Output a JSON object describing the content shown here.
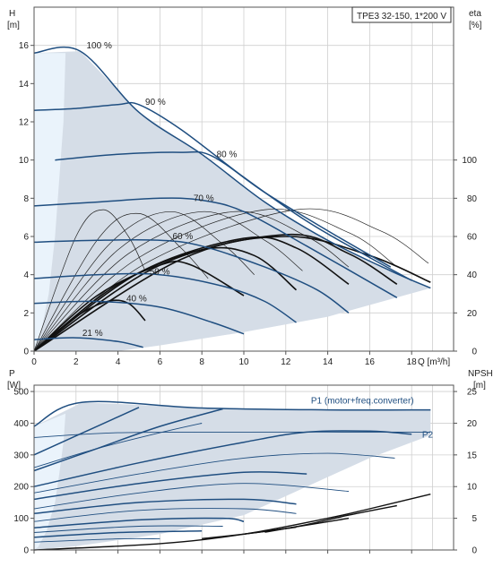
{
  "title": "TPE3 32-150, 1*200 V",
  "colors": {
    "envelope": "#d5dde7",
    "leftBand": "#eaf3fb",
    "curve": "#1f4e80",
    "thin": "#222222",
    "grid": "#cfcfcf"
  },
  "chart_data": [
    {
      "id": "head",
      "type": "line",
      "xlabel": "Q [m³/h]",
      "ylabel_left": "H",
      "ylabel_left_unit": "[m]",
      "ylabel_right": "eta",
      "ylabel_right_unit": "[%]",
      "xlim": [
        0,
        20
      ],
      "ylim": [
        0,
        18
      ],
      "xticks": [
        0,
        2,
        4,
        6,
        8,
        10,
        12,
        14,
        16,
        18
      ],
      "xticklabels": [
        "0",
        "2",
        "4",
        "6",
        "8",
        "10",
        "12",
        "14",
        "16",
        "18"
      ],
      "yticks": [
        0,
        2,
        4,
        6,
        8,
        10,
        12,
        14,
        16
      ],
      "yticklabels": [
        "0",
        "2",
        "4",
        "6",
        "8",
        "10",
        "12",
        "14",
        "16"
      ],
      "right_ticks": [
        0,
        20,
        40,
        60,
        80,
        100
      ],
      "right_ticklabels": [
        "0",
        "20",
        "40",
        "60",
        "80",
        "100"
      ],
      "right_scale": 0.1,
      "envelope": [
        [
          0,
          15.6
        ],
        [
          2.2,
          15.7
        ],
        [
          5,
          12.5
        ],
        [
          8,
          10.3
        ],
        [
          11,
          7.8
        ],
        [
          14,
          5.8
        ],
        [
          17,
          4.2
        ],
        [
          18.9,
          3.3
        ],
        [
          14,
          1.8
        ],
        [
          10,
          1
        ],
        [
          6,
          0.3
        ],
        [
          4,
          0
        ],
        [
          0,
          0
        ]
      ],
      "left_band": [
        [
          0,
          15.6
        ],
        [
          1.5,
          15.6
        ],
        [
          1.4,
          12
        ],
        [
          1.2,
          9
        ],
        [
          1,
          6
        ],
        [
          0.7,
          3
        ],
        [
          0.3,
          0.8
        ],
        [
          0,
          0
        ]
      ],
      "series": [
        {
          "label": "100 %",
          "label_at": [
            2.5,
            15.85
          ],
          "values": [
            [
              0,
              15.6
            ],
            [
              2.2,
              15.7
            ],
            [
              5,
              12.5
            ],
            [
              8,
              10.3
            ],
            [
              11,
              7.8
            ],
            [
              14,
              5.8
            ],
            [
              17,
              4.2
            ],
            [
              18.9,
              3.3
            ]
          ]
        },
        {
          "label": "90 %",
          "label_at": [
            5.3,
            12.9
          ],
          "values": [
            [
              0,
              12.6
            ],
            [
              2,
              12.7
            ],
            [
              4,
              12.9
            ],
            [
              5,
              12.9
            ],
            [
              7,
              11.6
            ],
            [
              10,
              9.1
            ],
            [
              13,
              6.8
            ],
            [
              16,
              4.9
            ],
            [
              18,
              3.7
            ]
          ]
        },
        {
          "label": "80 %",
          "label_at": [
            8.7,
            10.15
          ],
          "values": [
            [
              1,
              10
            ],
            [
              4,
              10.3
            ],
            [
              7,
              10.4
            ],
            [
              8.5,
              10.2
            ],
            [
              11,
              8.3
            ],
            [
              14,
              6.3
            ],
            [
              17,
              4.4
            ]
          ]
        },
        {
          "label": "70 %",
          "label_at": [
            7.6,
            7.85
          ],
          "values": [
            [
              0,
              7.6
            ],
            [
              3,
              7.8
            ],
            [
              6,
              8
            ],
            [
              8,
              7.9
            ],
            [
              10,
              7.3
            ],
            [
              13,
              5.5
            ],
            [
              17.3,
              2.8
            ]
          ]
        },
        {
          "label": "60 %",
          "label_at": [
            6.6,
            5.85
          ],
          "values": [
            [
              0,
              5.7
            ],
            [
              3,
              5.8
            ],
            [
              6,
              5.8
            ],
            [
              8,
              5.5
            ],
            [
              11,
              4.4
            ],
            [
              13.5,
              3.2
            ],
            [
              15,
              2
            ]
          ]
        },
        {
          "label": "50 %",
          "label_at": [
            5.5,
            4
          ],
          "values": [
            [
              0,
              3.8
            ],
            [
              3,
              4
            ],
            [
              6,
              4
            ],
            [
              9,
              3.4
            ],
            [
              11,
              2.6
            ],
            [
              12.5,
              1.5
            ]
          ]
        },
        {
          "label": "40 %",
          "label_at": [
            4.4,
            2.6
          ],
          "values": [
            [
              0,
              2.5
            ],
            [
              3,
              2.6
            ],
            [
              6,
              2.3
            ],
            [
              8.5,
              1.5
            ],
            [
              10,
              0.9
            ]
          ]
        },
        {
          "label": "21 %",
          "label_at": [
            2.3,
            0.8
          ],
          "values": [
            [
              0,
              0.6
            ],
            [
              2,
              0.7
            ],
            [
              4,
              0.5
            ],
            [
              5.2,
              0.2
            ]
          ]
        }
      ],
      "eta_bold": [
        [
          [
            0,
            0
          ],
          [
            2,
            1.8
          ],
          [
            3.5,
            2.6
          ],
          [
            4.5,
            2.5
          ],
          [
            5.3,
            1.6
          ]
        ],
        [
          [
            0,
            0
          ],
          [
            3,
            2.9
          ],
          [
            6,
            4.5
          ],
          [
            7.5,
            4.5
          ],
          [
            10,
            2.9
          ]
        ],
        [
          [
            0,
            0
          ],
          [
            4,
            3.5
          ],
          [
            8,
            5.3
          ],
          [
            10.5,
            5
          ],
          [
            12.5,
            3.2
          ]
        ],
        [
          [
            0,
            0
          ],
          [
            5,
            4.1
          ],
          [
            10,
            5.9
          ],
          [
            12.5,
            5.4
          ],
          [
            15,
            3.5
          ]
        ],
        [
          [
            0,
            0
          ],
          [
            6,
            4.5
          ],
          [
            12,
            6.1
          ],
          [
            15,
            5.1
          ],
          [
            17.3,
            3.5
          ]
        ],
        [
          [
            0,
            0
          ],
          [
            7,
            4.8
          ],
          [
            12,
            6
          ],
          [
            16,
            5
          ],
          [
            18.9,
            3.6
          ]
        ]
      ],
      "eta_thin": [
        [
          [
            0,
            0
          ],
          [
            2,
            6
          ],
          [
            3.3,
            7.4
          ],
          [
            4.5,
            6
          ],
          [
            5.3,
            4.2
          ]
        ],
        [
          [
            0,
            0
          ],
          [
            3,
            5.8
          ],
          [
            5,
            7.2
          ],
          [
            7,
            5.4
          ],
          [
            8.3,
            3.8
          ]
        ],
        [
          [
            0,
            0
          ],
          [
            3.5,
            5.5
          ],
          [
            6.5,
            7.3
          ],
          [
            9,
            5.6
          ],
          [
            10.5,
            4
          ]
        ],
        [
          [
            0,
            0
          ],
          [
            4,
            5.3
          ],
          [
            8,
            7.3
          ],
          [
            11,
            5.8
          ],
          [
            12.8,
            4.2
          ]
        ],
        [
          [
            0,
            0
          ],
          [
            4.5,
            5.1
          ],
          [
            9.5,
            7.3
          ],
          [
            13,
            6
          ],
          [
            15,
            4.4
          ]
        ],
        [
          [
            0,
            0
          ],
          [
            5,
            4.9
          ],
          [
            11,
            7.4
          ],
          [
            15,
            6.2
          ],
          [
            17.2,
            4.5
          ]
        ],
        [
          [
            0,
            0
          ],
          [
            5.5,
            4.7
          ],
          [
            12.5,
            7.4
          ],
          [
            16.5,
            6.3
          ],
          [
            18.8,
            4.6
          ]
        ]
      ]
    },
    {
      "id": "power",
      "type": "line",
      "ylabel_left": "P",
      "ylabel_left_unit": "[W]",
      "ylabel_right": "NPSH",
      "ylabel_right_unit": "[m]",
      "xlim": [
        0,
        20
      ],
      "ylim": [
        0,
        520
      ],
      "xticks": [
        0,
        2,
        4,
        6,
        8,
        10,
        12,
        14,
        16,
        18
      ],
      "yticks": [
        0,
        100,
        200,
        300,
        400,
        500
      ],
      "yticklabels": [
        "0",
        "100",
        "200",
        "300",
        "400",
        "500"
      ],
      "right_ticks": [
        0,
        5,
        10,
        15,
        20,
        25
      ],
      "right_ticklabels": [
        "0",
        "5",
        "10",
        "15",
        "20",
        "25"
      ],
      "right_scale": 20,
      "series_labels": [
        {
          "label": "P1 (motor+freq.converter)",
          "label_at": [
            13.2,
            462
          ]
        },
        {
          "label": "P2",
          "label_at": [
            18.5,
            354
          ]
        }
      ],
      "envelope": [
        [
          0,
          390
        ],
        [
          2.3,
          466
        ],
        [
          8,
          448
        ],
        [
          14,
          442
        ],
        [
          18.9,
          442
        ],
        [
          18.9,
          362
        ],
        [
          16,
          290
        ],
        [
          13,
          200
        ],
        [
          10,
          110
        ],
        [
          6,
          50
        ],
        [
          2,
          12
        ],
        [
          0,
          0
        ]
      ],
      "left_band": [
        [
          0,
          390
        ],
        [
          1.5,
          430
        ],
        [
          1.4,
          340
        ],
        [
          1.2,
          240
        ],
        [
          1,
          150
        ],
        [
          0.6,
          60
        ],
        [
          0.2,
          10
        ],
        [
          0,
          0
        ]
      ],
      "p1_curves": [
        [
          [
            0,
            390
          ],
          [
            2.3,
            466
          ],
          [
            8,
            448
          ],
          [
            14,
            442
          ],
          [
            18.9,
            442
          ]
        ],
        [
          [
            0,
            300
          ],
          [
            2,
            360
          ],
          [
            4,
            420
          ],
          [
            5,
            450
          ]
        ],
        [
          [
            0,
            250
          ],
          [
            3,
            320
          ],
          [
            6,
            390
          ],
          [
            9,
            445
          ]
        ],
        [
          [
            0,
            200
          ],
          [
            5,
            275
          ],
          [
            10,
            340
          ],
          [
            13,
            372
          ],
          [
            16,
            375
          ],
          [
            18,
            365
          ]
        ],
        [
          [
            0,
            160
          ],
          [
            5,
            210
          ],
          [
            10,
            245
          ],
          [
            13,
            240
          ]
        ],
        [
          [
            0,
            115
          ],
          [
            5,
            150
          ],
          [
            10,
            160
          ],
          [
            12.5,
            145
          ]
        ],
        [
          [
            0,
            70
          ],
          [
            5,
            95
          ],
          [
            9,
            100
          ],
          [
            10,
            90
          ]
        ],
        [
          [
            0,
            40
          ],
          [
            4,
            55
          ],
          [
            8,
            60
          ]
        ]
      ],
      "p2_curves": [
        [
          [
            0,
            355
          ],
          [
            4,
            370
          ],
          [
            10,
            372
          ],
          [
            18.9,
            372
          ]
        ],
        [
          [
            0,
            260
          ],
          [
            3,
            320
          ],
          [
            6,
            370
          ],
          [
            8,
            400
          ]
        ],
        [
          [
            0,
            180
          ],
          [
            5,
            240
          ],
          [
            10,
            290
          ],
          [
            14,
            305
          ],
          [
            17.2,
            290
          ]
        ],
        [
          [
            0,
            130
          ],
          [
            5,
            180
          ],
          [
            10,
            210
          ],
          [
            15,
            185
          ]
        ],
        [
          [
            0,
            90
          ],
          [
            5,
            125
          ],
          [
            10,
            130
          ],
          [
            12.5,
            115
          ]
        ],
        [
          [
            0,
            55
          ],
          [
            5,
            75
          ],
          [
            9,
            75
          ]
        ],
        [
          [
            0,
            25
          ],
          [
            4,
            35
          ],
          [
            6,
            35
          ]
        ]
      ],
      "npsh_curves": [
        [
          [
            0,
            0
          ],
          [
            6,
            20
          ],
          [
            10,
            50
          ],
          [
            14,
            100
          ],
          [
            16,
            130
          ],
          [
            18.9,
            176
          ]
        ],
        [
          [
            11,
            56
          ],
          [
            13,
            80
          ],
          [
            15,
            110
          ],
          [
            17.3,
            140
          ]
        ],
        [
          [
            10,
            50
          ],
          [
            12,
            68
          ],
          [
            15,
            100
          ]
        ],
        [
          [
            8,
            36
          ],
          [
            10,
            50
          ],
          [
            12.5,
            72
          ]
        ]
      ]
    }
  ]
}
